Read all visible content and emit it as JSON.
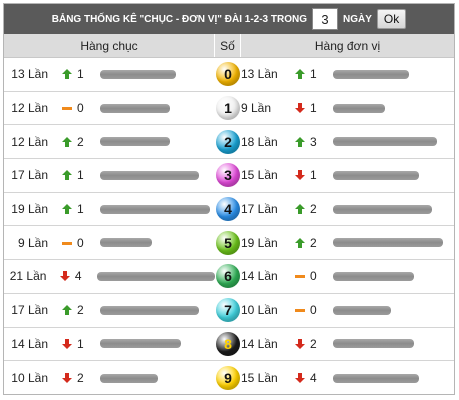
{
  "toolbar": {
    "title": "BẢNG THỐNG KÊ \"CHỤC - ĐƠN VỊ\" ĐÀI 1-2-3 TRONG",
    "days_value": "3",
    "days_suffix": "NGÀY",
    "ok_label": "Ok"
  },
  "columns": {
    "tens": "Hàng chục",
    "digit": "Số",
    "units": "Hàng đơn vị"
  },
  "colors": {
    "up": "#3a9b2a",
    "down": "#d42a1c",
    "same": "#f08a1c",
    "bar": "#9a9a9a"
  },
  "rows": [
    {
      "digit": "0",
      "ball_color": "#f3b400",
      "tens": {
        "times": "13 Lần",
        "trend": "up",
        "change": "1",
        "bar_fraction": 0.42
      },
      "units": {
        "times": "13 Lần",
        "trend": "up",
        "change": "1",
        "bar_fraction": 0.42
      }
    },
    {
      "digit": "1",
      "ball_color": "#efefef",
      "tens": {
        "times": "12 Lần",
        "trend": "same",
        "change": "0",
        "bar_fraction": 0.39
      },
      "units": {
        "times": "9 Lần",
        "trend": "down",
        "change": "1",
        "bar_fraction": 0.29
      }
    },
    {
      "digit": "2",
      "ball_color": "#1aa3d4",
      "tens": {
        "times": "12 Lần",
        "trend": "up",
        "change": "2",
        "bar_fraction": 0.39
      },
      "units": {
        "times": "18 Lần",
        "trend": "up",
        "change": "3",
        "bar_fraction": 0.58
      }
    },
    {
      "digit": "3",
      "ball_color": "#e04ad8",
      "tens": {
        "times": "17 Lần",
        "trend": "up",
        "change": "1",
        "bar_fraction": 0.55
      },
      "units": {
        "times": "15 Lần",
        "trend": "down",
        "change": "1",
        "bar_fraction": 0.48
      }
    },
    {
      "digit": "4",
      "ball_color": "#2a8ee8",
      "tens": {
        "times": "19 Lần",
        "trend": "up",
        "change": "1",
        "bar_fraction": 0.61
      },
      "units": {
        "times": "17 Lần",
        "trend": "up",
        "change": "2",
        "bar_fraction": 0.55
      }
    },
    {
      "digit": "5",
      "ball_color": "#6cc21a",
      "tens": {
        "times": "9 Lần",
        "trend": "same",
        "change": "0",
        "bar_fraction": 0.29
      },
      "units": {
        "times": "19 Lần",
        "trend": "up",
        "change": "2",
        "bar_fraction": 0.61
      }
    },
    {
      "digit": "6",
      "ball_color": "#2fae55",
      "tens": {
        "times": "21 Lần",
        "trend": "down",
        "change": "4",
        "bar_fraction": 0.68
      },
      "units": {
        "times": "14 Lần",
        "trend": "same",
        "change": "0",
        "bar_fraction": 0.45
      }
    },
    {
      "digit": "7",
      "ball_color": "#3fd0dc",
      "tens": {
        "times": "17 Lần",
        "trend": "up",
        "change": "2",
        "bar_fraction": 0.55
      },
      "units": {
        "times": "10 Lần",
        "trend": "same",
        "change": "0",
        "bar_fraction": 0.32
      }
    },
    {
      "digit": "8",
      "ball_color": "#1c1c1c",
      "tens": {
        "times": "14 Lần",
        "trend": "down",
        "change": "1",
        "bar_fraction": 0.45
      },
      "units": {
        "times": "14 Lần",
        "trend": "down",
        "change": "2",
        "bar_fraction": 0.45
      }
    },
    {
      "digit": "9",
      "ball_color": "#ffd200",
      "tens": {
        "times": "10 Lần",
        "trend": "down",
        "change": "2",
        "bar_fraction": 0.32
      },
      "units": {
        "times": "15 Lần",
        "trend": "down",
        "change": "4",
        "bar_fraction": 0.48
      }
    }
  ]
}
